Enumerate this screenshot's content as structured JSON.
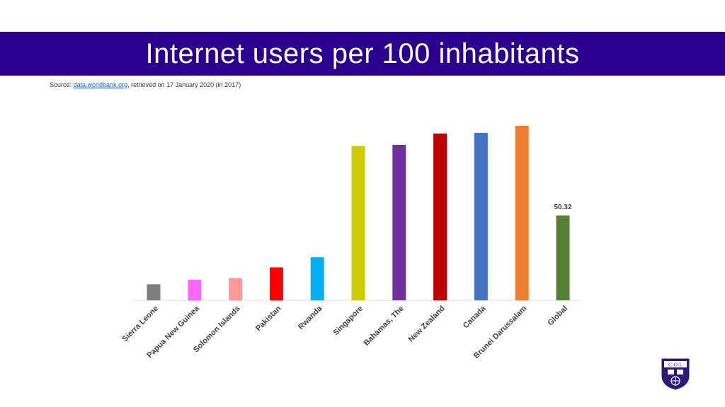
{
  "header": {
    "title": "Internet users per 100 inhabitants"
  },
  "source": {
    "prefix": "Source: ",
    "link_text": "data.worldbank.org",
    "suffix": ", retrieved on 17 January 2020 (in 2017)"
  },
  "logo": {
    "text": "C·O·L"
  },
  "chart_data": {
    "type": "bar",
    "title": "Internet users per 100 inhabitants",
    "xlabel": "",
    "ylabel": "",
    "ylim": [
      0,
      110
    ],
    "grid": false,
    "categories": [
      "Sierra Leone",
      "Papua New Guinea",
      "Solomon Islands",
      "Pakistan",
      "Rwanda",
      "Singapore",
      "Bahamas, The",
      "New Zealand",
      "Canada",
      "Brunei Darussalam",
      "Global"
    ],
    "values": [
      9.5,
      12.2,
      13.2,
      19.5,
      25.5,
      91.5,
      92.2,
      98.9,
      99.3,
      103.5,
      50.32
    ],
    "colors": [
      "#7f7f7f",
      "#ff66ff",
      "#ff9999",
      "#ff0000",
      "#00b0f0",
      "#cccc00",
      "#7030a0",
      "#c00000",
      "#4472c4",
      "#ed7d31",
      "#548235"
    ],
    "data_labels": [
      null,
      null,
      null,
      null,
      null,
      null,
      null,
      null,
      null,
      null,
      "50.32"
    ]
  }
}
